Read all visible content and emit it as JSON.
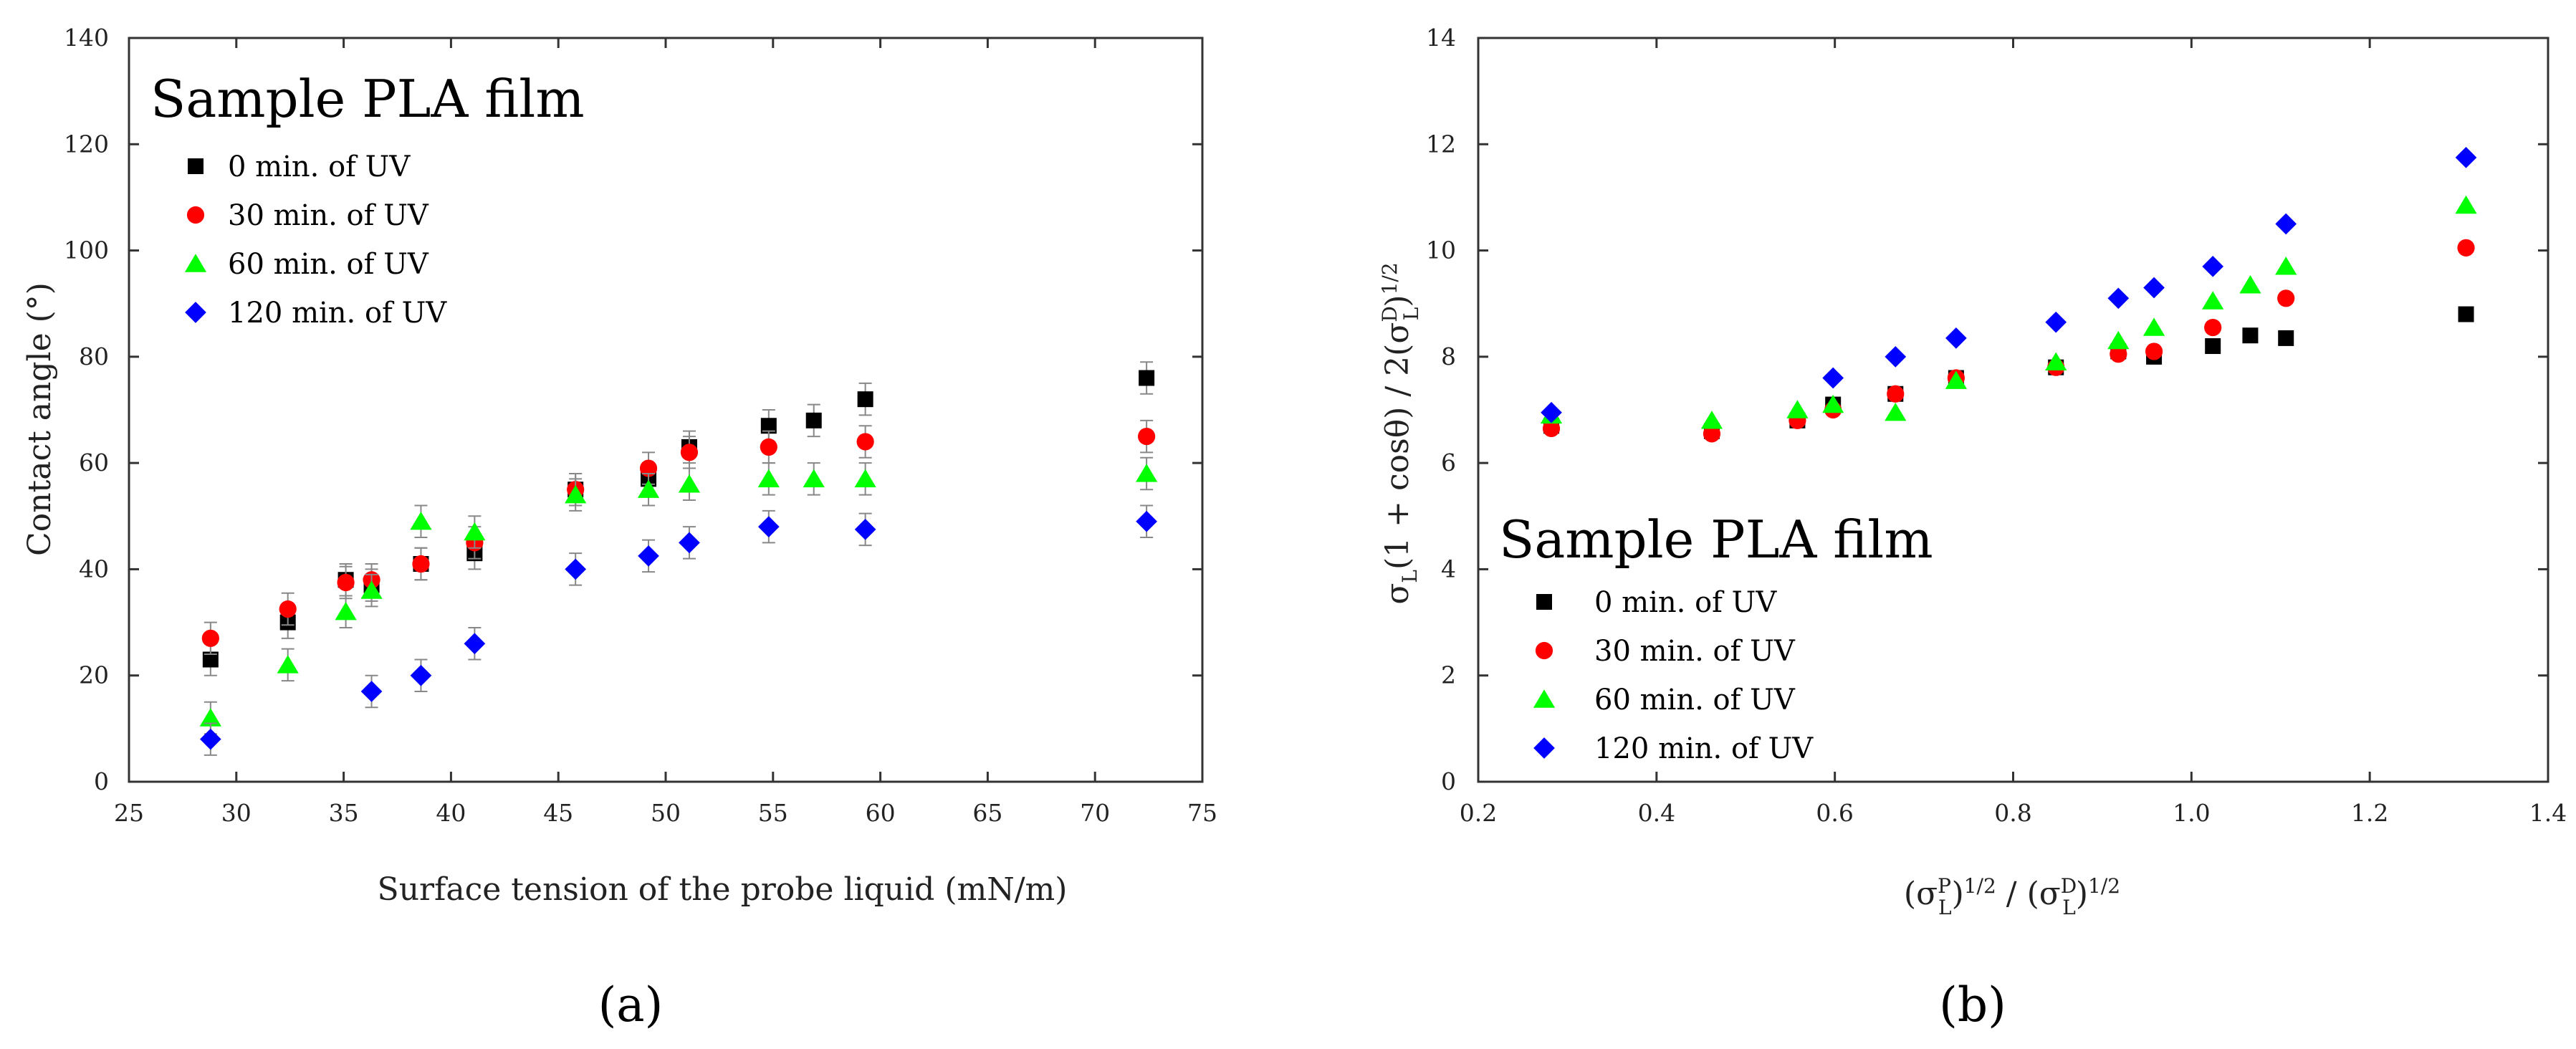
{
  "chart_data": [
    {
      "type": "scatter",
      "panel_label": "(a)",
      "title": "Sample PLA film",
      "xlabel": "Surface tension of the probe liquid (mN/m)",
      "ylabel": "Contact angle (°)",
      "xlim": [
        25,
        75
      ],
      "ylim": [
        0,
        140
      ],
      "xticks": [
        25,
        30,
        35,
        40,
        45,
        50,
        55,
        60,
        65,
        70,
        75
      ],
      "yticks": [
        0,
        20,
        40,
        60,
        80,
        100,
        120,
        140
      ],
      "legend_position": "top-left",
      "error_bars": true,
      "series": [
        {
          "name": "0 min. of UV",
          "marker": "square",
          "color": "#000000",
          "x": [
            28.8,
            32.4,
            35.1,
            36.3,
            38.6,
            41.1,
            45.8,
            49.2,
            51.1,
            54.8,
            56.9,
            59.3,
            72.4
          ],
          "y": [
            23,
            30,
            38,
            37,
            41,
            43,
            55,
            57,
            63,
            67,
            68,
            72,
            76
          ],
          "err": [
            3,
            3,
            3,
            3,
            3,
            3,
            3,
            3,
            3,
            3,
            3,
            3,
            3
          ]
        },
        {
          "name": "30 min. of UV",
          "marker": "circle",
          "color": "#ff0000",
          "x": [
            28.8,
            32.4,
            35.1,
            36.3,
            38.6,
            41.1,
            45.8,
            49.2,
            51.1,
            54.8,
            59.3,
            72.4
          ],
          "y": [
            27,
            32.5,
            37.5,
            38,
            41,
            45,
            55,
            59,
            62,
            63,
            64,
            65
          ],
          "err": [
            3,
            3,
            3,
            3,
            3,
            3,
            3,
            3,
            3,
            3,
            3,
            3
          ]
        },
        {
          "name": "60 min. of UV",
          "marker": "triangle",
          "color": "#00ff00",
          "x": [
            28.8,
            32.4,
            35.1,
            36.3,
            38.6,
            41.1,
            45.8,
            49.2,
            51.1,
            54.8,
            56.9,
            59.3,
            72.4
          ],
          "y": [
            12,
            22,
            32,
            36,
            49,
            47,
            54,
            55,
            56,
            57,
            57,
            57,
            58
          ],
          "err": [
            3,
            3,
            3,
            3,
            3,
            3,
            3,
            3,
            3,
            3,
            3,
            3,
            3
          ]
        },
        {
          "name": "120 min. of UV",
          "marker": "diamond",
          "color": "#0000ff",
          "x": [
            28.8,
            36.3,
            38.6,
            41.1,
            45.8,
            49.2,
            51.1,
            54.8,
            59.3,
            72.4
          ],
          "y": [
            8,
            17,
            20,
            26,
            40,
            42.5,
            45,
            48,
            47.5,
            49
          ],
          "err": [
            3,
            3,
            3,
            3,
            3,
            3,
            3,
            3,
            3,
            3
          ]
        }
      ]
    },
    {
      "type": "scatter",
      "panel_label": "(b)",
      "title": "Sample PLA film",
      "xlabel": "(σLP)1/2 / (σLD)1/2",
      "ylabel": "σL(1 + cosθ) / 2(σLD)1/2",
      "xlabel_parts": {
        "open": "(σ",
        "p_sup": "P",
        "p_sub": "L",
        "mid": ")",
        "e1": "1/2",
        "slash": " / (σ",
        "d_sup": "D",
        "d_sub": "L",
        "close": ")",
        "e2": "1/2"
      },
      "ylabel_parts": {
        "sigma": "σ",
        "sub": "L",
        "mid": "(1 + cosθ) / 2(σ",
        "d_sup": "D",
        "d_sub": "L",
        "close": ")",
        "e": "1/2"
      },
      "xlim": [
        0.2,
        1.4
      ],
      "ylim": [
        0,
        14
      ],
      "xticks": [
        "0.2",
        "0.4",
        "0.6",
        "0.8",
        "1.0",
        "1.2",
        "1.4"
      ],
      "yticks": [
        0,
        2,
        4,
        6,
        8,
        10,
        12,
        14
      ],
      "legend_position": "bottom-left",
      "error_bars": false,
      "series": [
        {
          "name": "0 min. of UV",
          "marker": "square",
          "color": "#000000",
          "x": [
            0.282,
            0.462,
            0.558,
            0.598,
            0.668,
            0.736,
            0.848,
            0.918,
            0.958,
            1.024,
            1.066,
            1.106,
            1.308
          ],
          "y": [
            6.7,
            6.6,
            6.8,
            7.1,
            7.3,
            7.6,
            7.8,
            8.1,
            8.0,
            8.2,
            8.4,
            8.35,
            8.8
          ]
        },
        {
          "name": "30 min. of UV",
          "marker": "circle",
          "color": "#ff0000",
          "x": [
            0.282,
            0.462,
            0.558,
            0.598,
            0.668,
            0.736,
            0.848,
            0.918,
            0.958,
            1.024,
            1.106,
            1.308
          ],
          "y": [
            6.65,
            6.55,
            6.8,
            7.0,
            7.3,
            7.6,
            7.8,
            8.05,
            8.1,
            8.55,
            9.1,
            10.05
          ]
        },
        {
          "name": "60 min. of UV",
          "marker": "triangle",
          "color": "#00ff00",
          "x": [
            0.282,
            0.462,
            0.558,
            0.598,
            0.668,
            0.736,
            0.848,
            0.918,
            0.958,
            1.024,
            1.066,
            1.106,
            1.308
          ],
          "y": [
            6.9,
            6.8,
            7.0,
            7.1,
            6.95,
            7.55,
            7.9,
            8.3,
            8.55,
            9.05,
            9.35,
            9.7,
            10.85
          ]
        },
        {
          "name": "120 min. of UV",
          "marker": "diamond",
          "color": "#0000ff",
          "x": [
            0.282,
            0.598,
            0.668,
            0.736,
            0.848,
            0.918,
            0.958,
            1.024,
            1.106,
            1.308
          ],
          "y": [
            6.95,
            7.6,
            8.0,
            8.35,
            8.65,
            9.1,
            9.3,
            9.7,
            10.5,
            11.75
          ]
        }
      ]
    }
  ]
}
